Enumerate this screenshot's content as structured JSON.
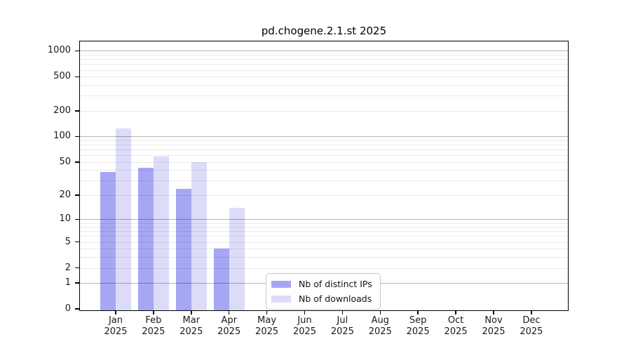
{
  "window": {
    "background": "#ffffff"
  },
  "chart_data": {
    "type": "bar",
    "title": "pd.chogene.2.1.st 2025",
    "categories": [
      "Jan 2025",
      "Feb 2025",
      "Mar 2025",
      "Apr 2025",
      "May 2025",
      "Jun 2025",
      "Jul 2025",
      "Aug 2025",
      "Sep 2025",
      "Oct 2025",
      "Nov 2025",
      "Dec 2025"
    ],
    "series": [
      {
        "name": "Nb of distinct IPs",
        "color": "#a6a6f3",
        "values": [
          38,
          43,
          24,
          4,
          0,
          0,
          0,
          0,
          0,
          0,
          0,
          0
        ]
      },
      {
        "name": "Nb of downloads",
        "color": "#dcdcf9",
        "values": [
          125,
          58,
          50,
          14,
          0,
          0,
          0,
          0,
          0,
          0,
          0,
          0
        ]
      }
    ],
    "xlabel": "",
    "ylabel": "",
    "y_scale": "log-like (tick positions follow log10(1+x))",
    "y_ticks": [
      1000,
      500,
      200,
      100,
      50,
      20,
      10,
      5,
      2,
      1,
      0
    ],
    "ylim": [
      0,
      1300
    ],
    "grid": {
      "major_values": [
        1,
        10,
        100,
        1000
      ],
      "minor_values": [
        2,
        3,
        4,
        5,
        6,
        7,
        8,
        9,
        20,
        30,
        40,
        50,
        60,
        70,
        80,
        90,
        200,
        300,
        400,
        500,
        600,
        700,
        800,
        900
      ]
    },
    "legend": {
      "position": "inside bottom-center",
      "entries": [
        "Nb of distinct IPs",
        "Nb of downloads"
      ]
    }
  },
  "colors": {
    "axis": "#000000",
    "text": "#1a1a1a",
    "grid_major": "#b4b4b4",
    "grid_minor": "#eaeaea",
    "legend_border": "#c9c9c9",
    "background": "#ffffff"
  }
}
